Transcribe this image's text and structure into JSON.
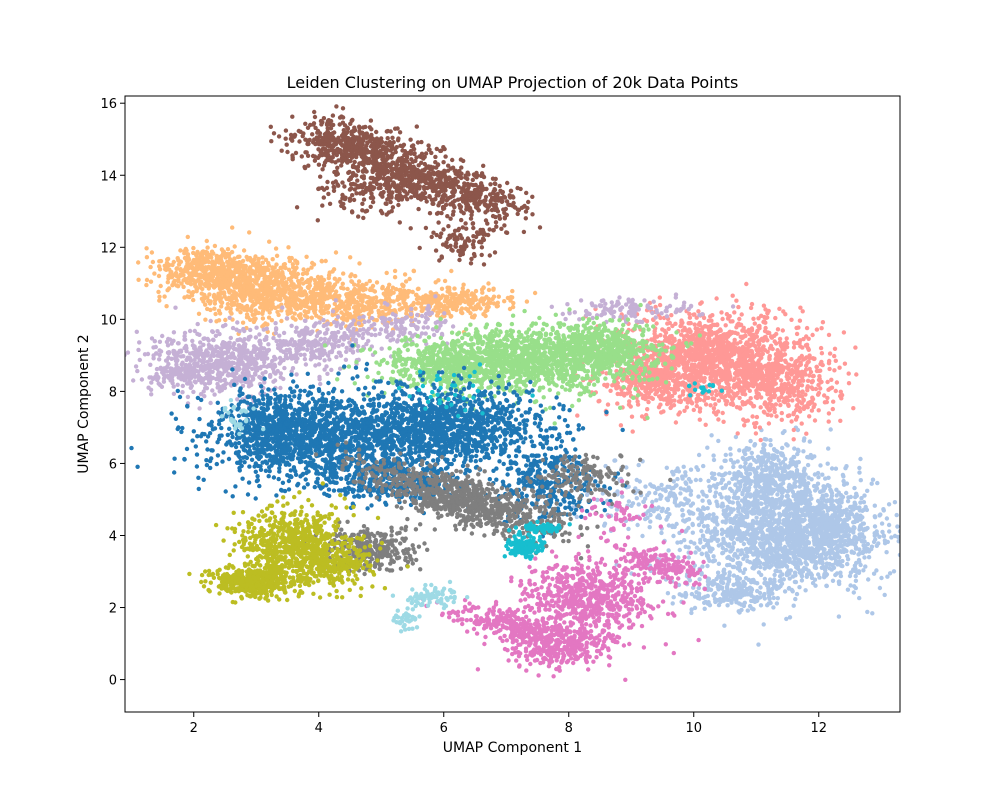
{
  "chart_data": {
    "type": "scatter",
    "title": "Leiden Clustering on UMAP Projection of 20k Data Points",
    "xlabel": "UMAP Component 1",
    "ylabel": "UMAP Component 2",
    "xlim": [
      0.9,
      13.3
    ],
    "ylim": [
      -0.9,
      16.2
    ],
    "xticks": [
      2,
      4,
      6,
      8,
      10,
      12
    ],
    "yticks": [
      0,
      2,
      4,
      6,
      8,
      10,
      12,
      14,
      16
    ],
    "grid": false,
    "legend": "none",
    "n_points_total": 20000,
    "clusters": [
      {
        "id": 0,
        "color": "#1f77b4",
        "center": [
          5.3,
          6.6
        ],
        "approx_points": 3400
      },
      {
        "id": 1,
        "color": "#aec7e8",
        "center": [
          11.3,
          4.0
        ],
        "approx_points": 2700
      },
      {
        "id": 2,
        "color": "#ff9896",
        "center": [
          10.5,
          8.7
        ],
        "approx_points": 2100
      },
      {
        "id": 3,
        "color": "#98df8a",
        "center": [
          7.3,
          8.9
        ],
        "approx_points": 2000
      },
      {
        "id": 4,
        "color": "#ffbb78",
        "center": [
          3.6,
          10.8
        ],
        "approx_points": 1800
      },
      {
        "id": 5,
        "color": "#8c564b",
        "center": [
          5.4,
          14.1
        ],
        "approx_points": 1400
      },
      {
        "id": 6,
        "color": "#c5b0d5",
        "center": [
          2.7,
          8.8
        ],
        "approx_points": 1200
      },
      {
        "id": 7,
        "color": "#bcbd22",
        "center": [
          3.5,
          3.5
        ],
        "approx_points": 1300
      },
      {
        "id": 8,
        "color": "#7f7f7f",
        "center": [
          6.2,
          5.0
        ],
        "approx_points": 1300
      },
      {
        "id": 9,
        "color": "#e377c2",
        "center": [
          8.2,
          2.0
        ],
        "approx_points": 1400
      },
      {
        "id": 10,
        "color": "#17becf",
        "center": [
          7.4,
          3.8
        ],
        "approx_points": 250
      },
      {
        "id": 11,
        "color": "#9edae5",
        "center": [
          5.6,
          2.2
        ],
        "approx_points": 150
      }
    ]
  }
}
